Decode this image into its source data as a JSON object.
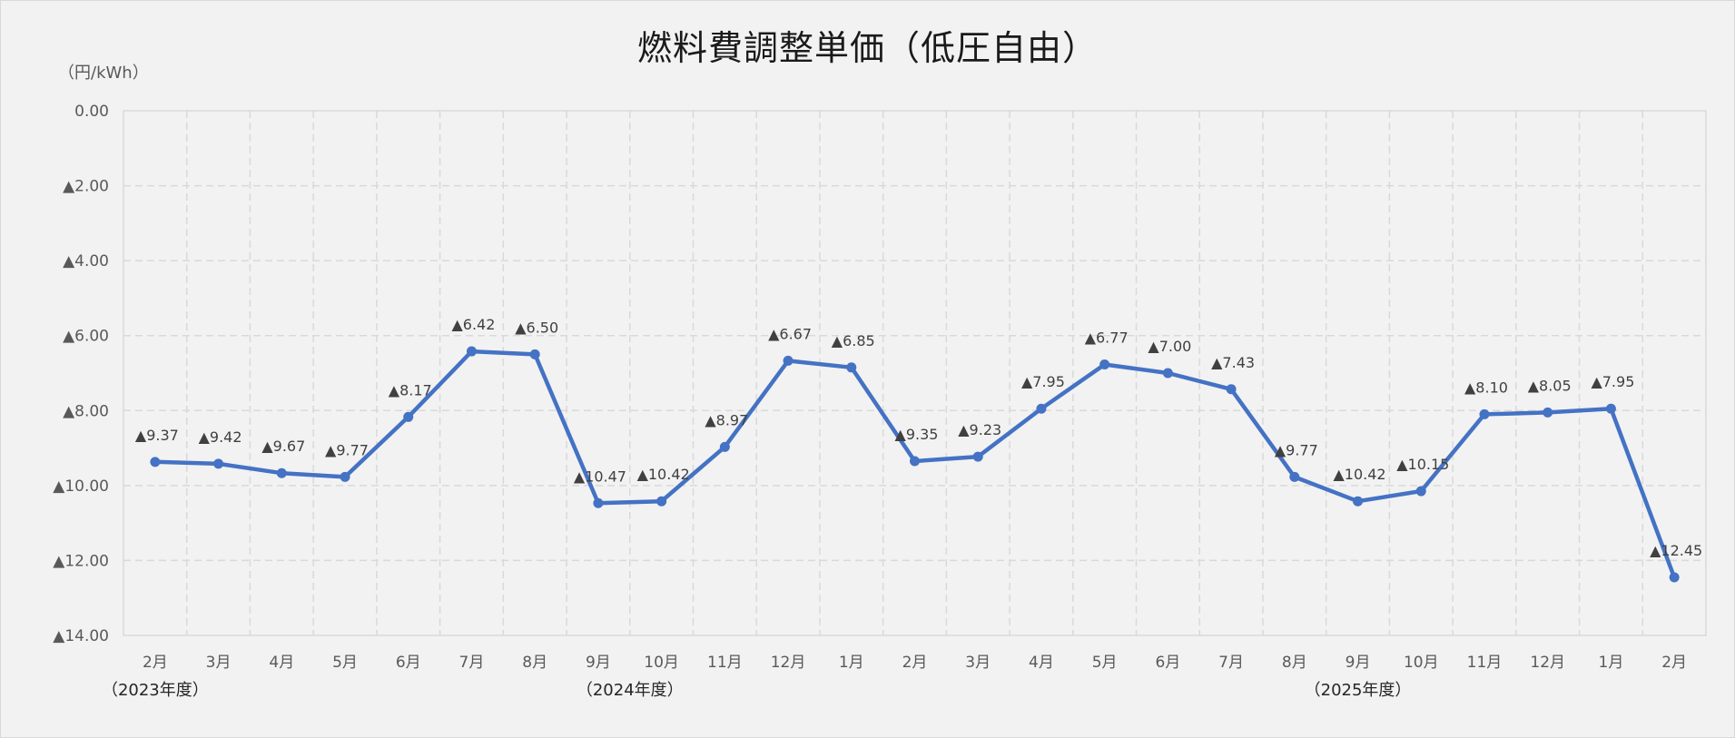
{
  "chart_data": {
    "type": "line",
    "title": "燃料費調整単価（低圧自由）",
    "ylabel": "（円/kWh）",
    "xlabel": "",
    "ylim": [
      0,
      -14
    ],
    "y_ticks": [
      "0.00",
      "▲2.00",
      "▲4.00",
      "▲6.00",
      "▲8.00",
      "▲10.00",
      "▲12.00",
      "▲14.00"
    ],
    "grid": true,
    "legend": null,
    "categories": [
      "2月",
      "3月",
      "4月",
      "5月",
      "6月",
      "7月",
      "8月",
      "9月",
      "10月",
      "11月",
      "12月",
      "1月",
      "2月",
      "3月",
      "4月",
      "5月",
      "6月",
      "7月",
      "8月",
      "9月",
      "10月",
      "11月",
      "12月",
      "1月",
      "2月"
    ],
    "fiscal_year_labels": [
      {
        "label": "（2023年度）",
        "index": 0
      },
      {
        "label": "（2024年度）",
        "index": 7.5
      },
      {
        "label": "（2025年度）",
        "index": 19
      }
    ],
    "series": [
      {
        "name": "燃料費調整単価",
        "color": "#4472c4",
        "values": [
          -9.37,
          -9.42,
          -9.67,
          -9.77,
          -8.17,
          -6.42,
          -6.5,
          -10.47,
          -10.42,
          -8.97,
          -6.67,
          -6.85,
          -9.35,
          -9.23,
          -7.95,
          -6.77,
          -7.0,
          -7.43,
          -9.77,
          -10.42,
          -10.15,
          -8.1,
          -8.05,
          -7.95,
          -12.45
        ],
        "labels": [
          "▲9.37",
          "▲9.42",
          "▲9.67",
          "▲9.77",
          "▲8.17",
          "▲6.42",
          "▲6.50",
          "▲10.47",
          "▲10.42",
          "▲8.97",
          "▲6.67",
          "▲6.85",
          "▲9.35",
          "▲9.23",
          "▲7.95",
          "▲6.77",
          "▲7.00",
          "▲7.43",
          "▲9.77",
          "▲10.42",
          "▲10.15",
          "▲8.10",
          "▲8.05",
          "▲7.95",
          "▲12.45"
        ]
      }
    ]
  },
  "colors": {
    "background": "#f2f2f2",
    "line": "#4472c4",
    "grid": "#d9d9d9",
    "axis_text": "#595959"
  }
}
